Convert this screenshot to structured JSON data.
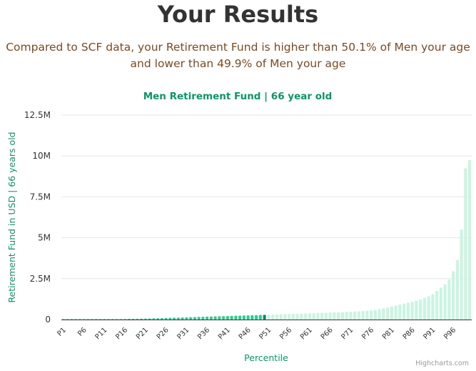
{
  "page": {
    "title": "Your Results",
    "summary": "Compared to SCF data, your Retirement Fund is higher than 50.1% of Men your age and lower than 49.9% of Men your age",
    "credits": "Highcharts.com"
  },
  "colors": {
    "below_user": "#2ecc8f",
    "user": "#0d8a5c",
    "above_user": "#c9f5e0",
    "title": "#0d9466",
    "axis_text": "#333333",
    "grid": "#e6e6e6"
  },
  "chart_data": {
    "type": "bar",
    "title": "Men Retirement Fund | 66 year old",
    "xlabel": "Percentile",
    "ylabel": "Retirement Fund in USD | 66 years old",
    "ylim": [
      0,
      12500000
    ],
    "y_ticks": [
      0,
      2500000,
      5000000,
      7500000,
      10000000,
      12500000
    ],
    "y_tick_labels": [
      "0",
      "2.5M",
      "5M",
      "7.5M",
      "10M",
      "12.5M"
    ],
    "x_tick_labels": [
      "P1",
      "P6",
      "P11",
      "P16",
      "P21",
      "P26",
      "P31",
      "P36",
      "P41",
      "P46",
      "P51",
      "P56",
      "P61",
      "P66",
      "P71",
      "P76",
      "P81",
      "P86",
      "P91",
      "P96"
    ],
    "user_percentile": 50,
    "grid": true,
    "legend": "none",
    "categories": [
      "P1",
      "P2",
      "P3",
      "P4",
      "P5",
      "P6",
      "P7",
      "P8",
      "P9",
      "P10",
      "P11",
      "P12",
      "P13",
      "P14",
      "P15",
      "P16",
      "P17",
      "P18",
      "P19",
      "P20",
      "P21",
      "P22",
      "P23",
      "P24",
      "P25",
      "P26",
      "P27",
      "P28",
      "P29",
      "P30",
      "P31",
      "P32",
      "P33",
      "P34",
      "P35",
      "P36",
      "P37",
      "P38",
      "P39",
      "P40",
      "P41",
      "P42",
      "P43",
      "P44",
      "P45",
      "P46",
      "P47",
      "P48",
      "P49",
      "P50",
      "P51",
      "P52",
      "P53",
      "P54",
      "P55",
      "P56",
      "P57",
      "P58",
      "P59",
      "P60",
      "P61",
      "P62",
      "P63",
      "P64",
      "P65",
      "P66",
      "P67",
      "P68",
      "P69",
      "P70",
      "P71",
      "P72",
      "P73",
      "P74",
      "P75",
      "P76",
      "P77",
      "P78",
      "P79",
      "P80",
      "P81",
      "P82",
      "P83",
      "P84",
      "P85",
      "P86",
      "P87",
      "P88",
      "P89",
      "P90",
      "P91",
      "P92",
      "P93",
      "P94",
      "P95",
      "P96",
      "P97",
      "P98",
      "P99",
      "P100"
    ],
    "values": [
      0,
      0,
      0,
      0,
      0,
      2000,
      4000,
      6000,
      8000,
      10000,
      13000,
      16000,
      20000,
      24000,
      28000,
      33000,
      38000,
      44000,
      50000,
      56000,
      62000,
      68000,
      75000,
      82000,
      90000,
      98000,
      106000,
      114000,
      122000,
      130000,
      138000,
      146000,
      154000,
      162000,
      170000,
      178000,
      186000,
      194000,
      202000,
      210000,
      218000,
      226000,
      234000,
      242000,
      250000,
      258000,
      266000,
      274000,
      282000,
      290000,
      298000,
      306000,
      314000,
      322000,
      330000,
      338000,
      346000,
      354000,
      362000,
      370000,
      380000,
      390000,
      400000,
      410000,
      420000,
      430000,
      440000,
      450000,
      460000,
      470000,
      480000,
      495000,
      510000,
      525000,
      545000,
      570000,
      600000,
      640000,
      690000,
      740000,
      800000,
      860000,
      920000,
      980000,
      1040000,
      1100000,
      1160000,
      1230000,
      1320000,
      1420000,
      1550000,
      1750000,
      1950000,
      2150000,
      2450000,
      2950000,
      3650000,
      5500000,
      9250000,
      9750000
    ]
  }
}
